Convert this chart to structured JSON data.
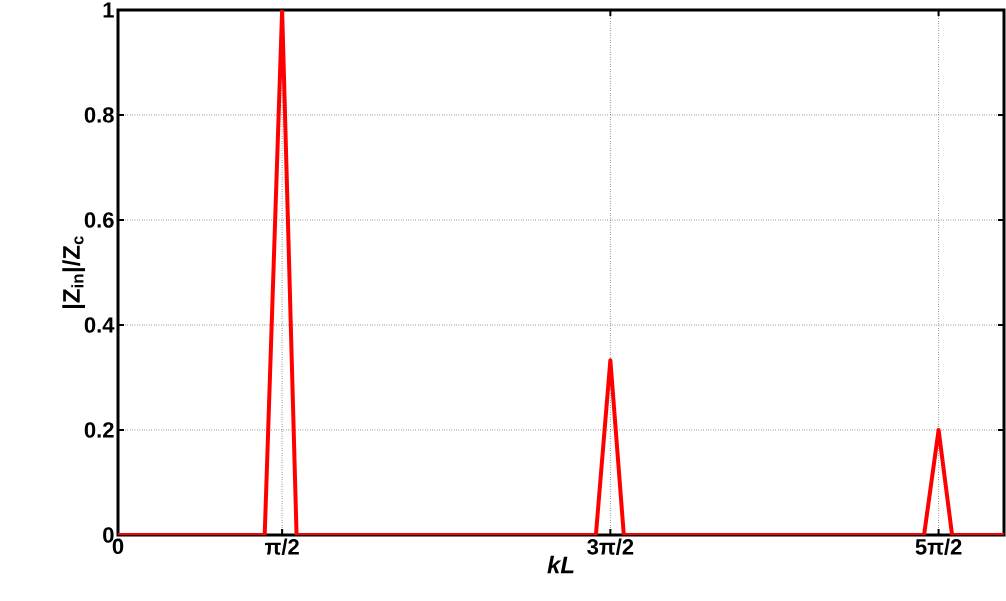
{
  "chart_data": {
    "type": "line",
    "xlabel": "*kL*",
    "ylabel": "|Z$_{in}$|/Z$_{c}$",
    "x": [
      0,
      1.404,
      1.5708,
      1.709,
      4.574,
      4.7124,
      4.841,
      7.715,
      7.854,
      7.983,
      8.48
    ],
    "series": [
      {
        "color": "#ff0000",
        "values": [
          0,
          0,
          1,
          0,
          0,
          0.333,
          0,
          0,
          0.2,
          0,
          0
        ]
      }
    ],
    "xlim": [
      0,
      8.48
    ],
    "ylim": [
      0,
      1
    ],
    "xticks": [
      0,
      {
        "value": 1.5708,
        "label": "π/2"
      },
      {
        "value": 4.7124,
        "label": "3π/2"
      },
      {
        "value": 7.854,
        "label": "5π/2"
      }
    ],
    "yticks": [
      0,
      0.2,
      0.4,
      0.6,
      0.8,
      1
    ],
    "grid": true,
    "marker": "none",
    "line_style": "solid"
  }
}
